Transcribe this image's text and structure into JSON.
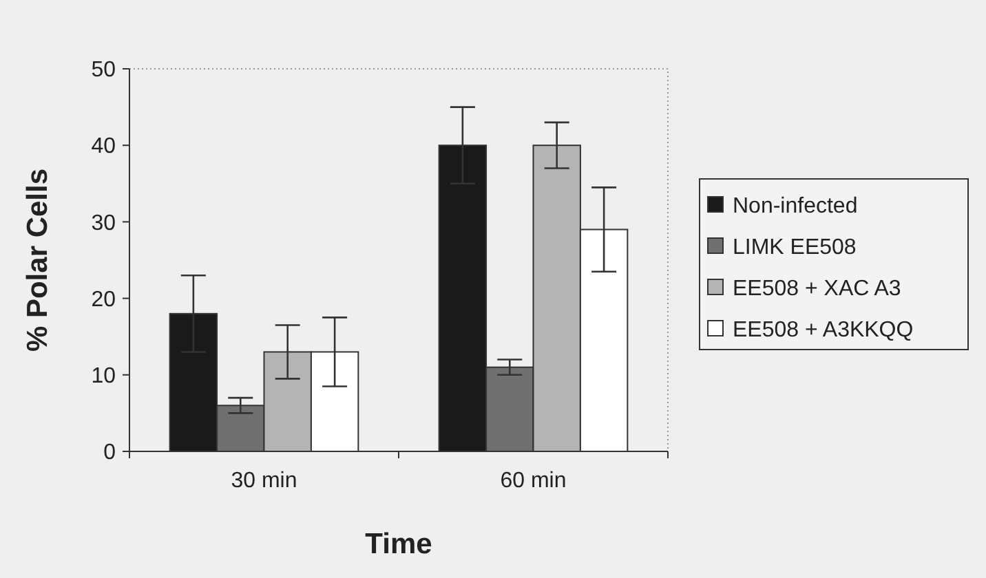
{
  "chart_data": {
    "type": "bar",
    "xlabel": "Time",
    "ylabel": "% Polar Cells",
    "categories": [
      "30 min",
      "60 min"
    ],
    "series": [
      {
        "name": "Non-infected",
        "color": "#1a1a1a",
        "values": [
          18,
          40
        ],
        "errors": [
          5,
          5
        ]
      },
      {
        "name": "LIMK EE508",
        "color": "#707070",
        "values": [
          6,
          11
        ],
        "errors": [
          1,
          1
        ]
      },
      {
        "name": "EE508 + XAC A3",
        "color": "#b4b4b4",
        "values": [
          13,
          40
        ],
        "errors": [
          3.5,
          3
        ]
      },
      {
        "name": "EE508 + A3KKQQ",
        "color": "#ffffff",
        "values": [
          13,
          29
        ],
        "errors": [
          4.5,
          5.5
        ]
      }
    ],
    "ylim": [
      0,
      50
    ],
    "yticks": [
      0,
      10,
      20,
      30,
      40,
      50
    ],
    "grid": false,
    "legend": "right"
  }
}
